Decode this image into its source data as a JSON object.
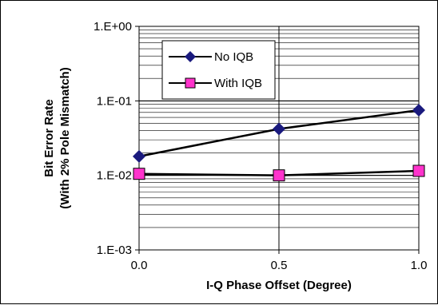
{
  "chart_data": {
    "type": "line",
    "title": "",
    "xlabel": "I-Q Phase Offset (Degree)",
    "ylabel_lines": [
      "Bit Error Rate",
      "(With 2% Pole Mismatch)"
    ],
    "x_scale": "linear",
    "y_scale": "log",
    "xlim": [
      0,
      1
    ],
    "ylim": [
      0.001,
      1
    ],
    "x_ticks": [
      0,
      0.5,
      1
    ],
    "x_tick_labels": [
      "0.0",
      "0.5",
      "1.0"
    ],
    "y_ticks": [
      0.001,
      0.01,
      0.1,
      1
    ],
    "y_tick_labels": [
      "1.E-03",
      "1.E-02",
      "1.E-01",
      "1.E+00"
    ],
    "grid": "horizontal log minor and major lines; vertical line at 0.5",
    "legend_position": "upper-left inside plot",
    "series": [
      {
        "name": "No IQB",
        "marker": "diamond",
        "color": "#1a1a7e",
        "x": [
          0,
          0.5,
          1
        ],
        "y": [
          0.018,
          0.042,
          0.075
        ]
      },
      {
        "name": "With IQB",
        "marker": "square",
        "color": "#ff33cc",
        "x": [
          0,
          0.5,
          1
        ],
        "y": [
          0.0105,
          0.01,
          0.0115
        ]
      }
    ]
  }
}
